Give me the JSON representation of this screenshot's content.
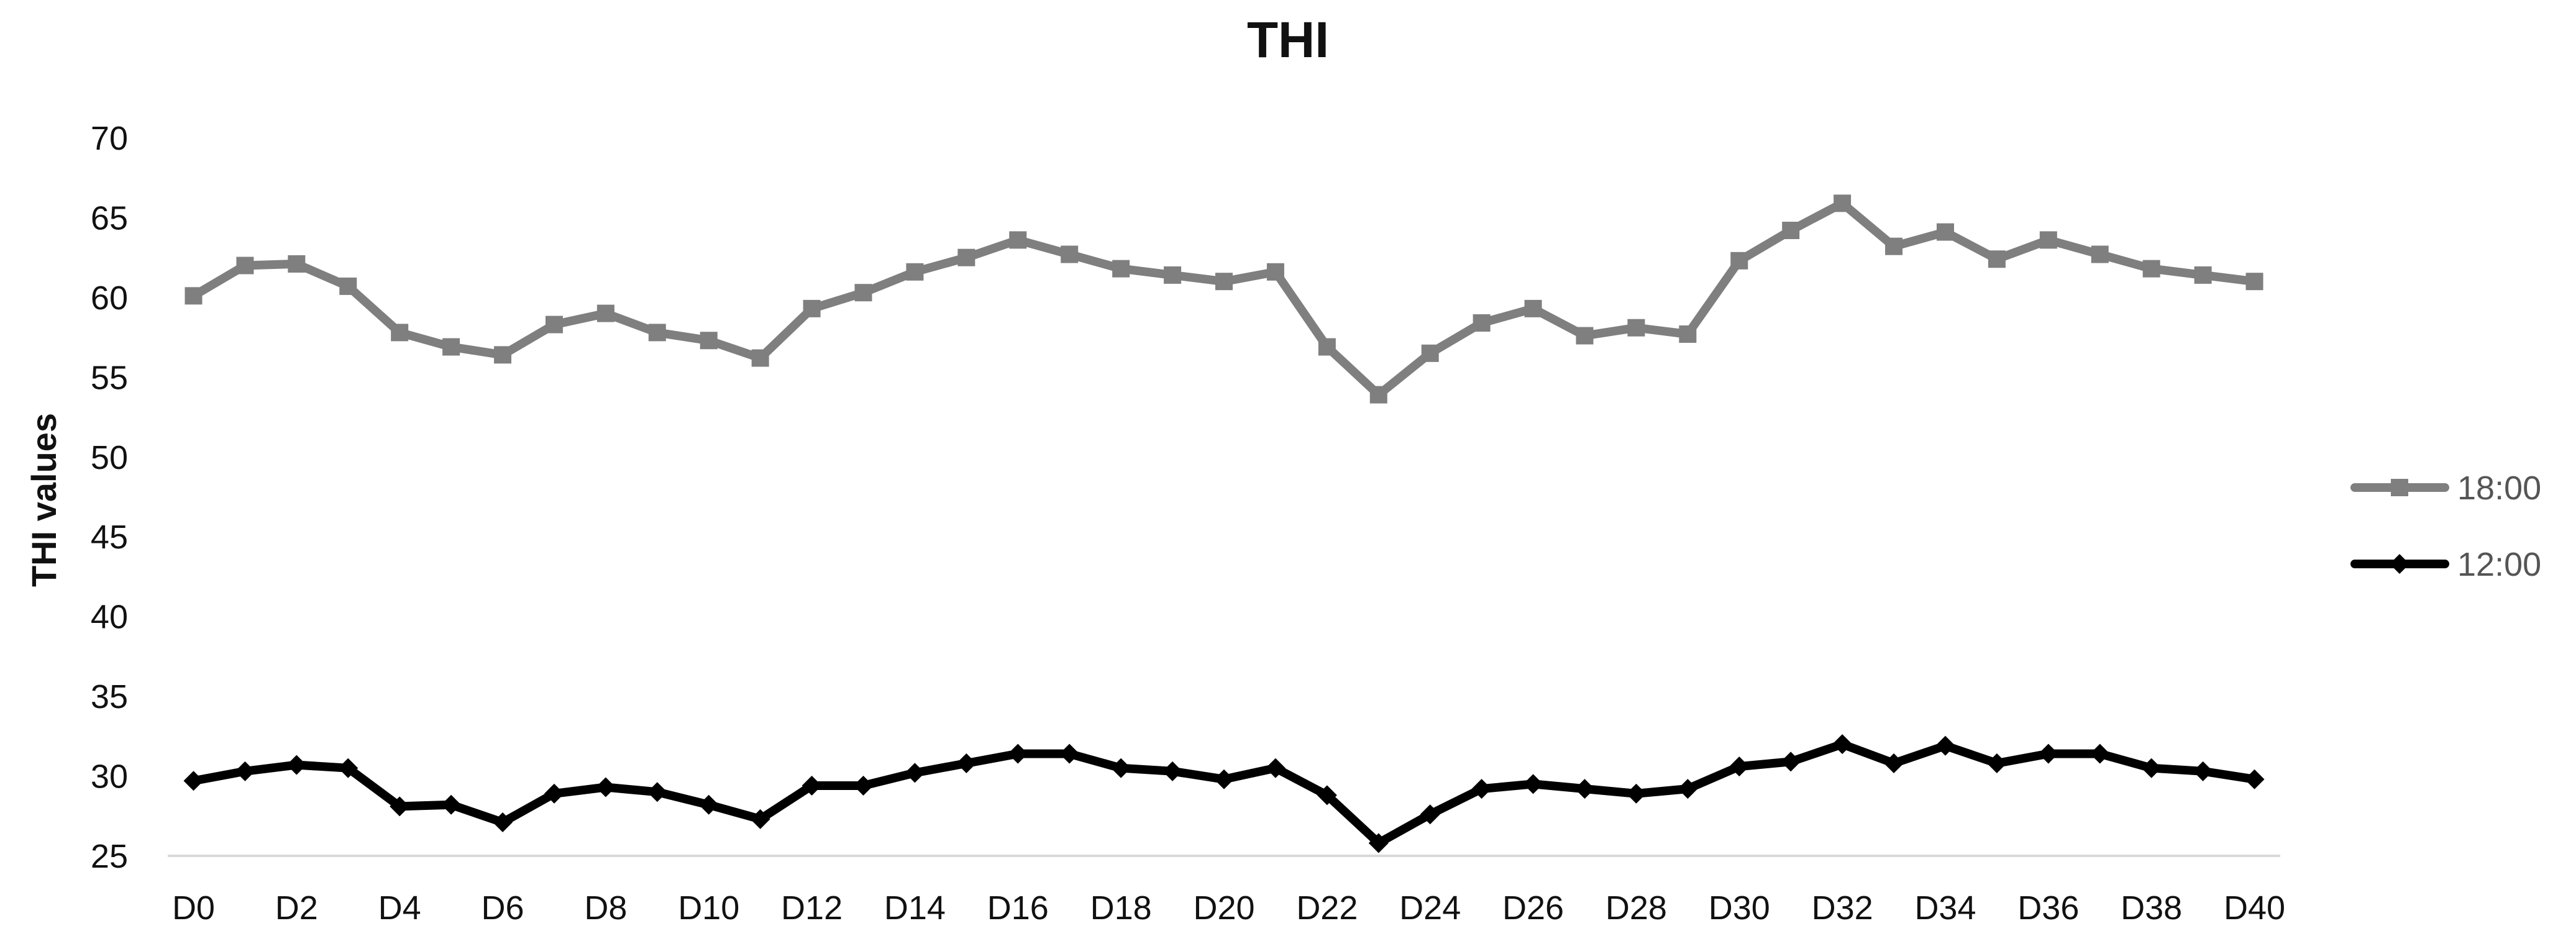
{
  "chart_data": {
    "type": "line",
    "title": "THI",
    "xlabel": "",
    "ylabel": "THI values",
    "ylim": [
      25,
      70
    ],
    "yticks": [
      25,
      30,
      35,
      40,
      45,
      50,
      55,
      60,
      65,
      70
    ],
    "grid": false,
    "legend_position": "right",
    "categories": [
      "D0",
      "D1",
      "D2",
      "D3",
      "D4",
      "D5",
      "D6",
      "D7",
      "D8",
      "D9",
      "D10",
      "D11",
      "D12",
      "D13",
      "D14",
      "D15",
      "D16",
      "D17",
      "D18",
      "D19",
      "D20",
      "D21",
      "D22",
      "D23",
      "D24",
      "D25",
      "D26",
      "D27",
      "D28",
      "D29",
      "D30",
      "D31",
      "D32",
      "D33",
      "D34",
      "D35",
      "D36",
      "D37",
      "D38",
      "D39",
      "D40"
    ],
    "xtick_labels": [
      "D0",
      "D2",
      "D4",
      "D6",
      "D8",
      "D10",
      "D12",
      "D14",
      "D16",
      "D18",
      "D20",
      "D22",
      "D24",
      "D26",
      "D28",
      "D30",
      "D32",
      "D34",
      "D36",
      "D38",
      "D40"
    ],
    "series": [
      {
        "name": "18:00",
        "color": "#7f7f7f",
        "marker": "square",
        "values": [
          60.1,
          62.0,
          62.1,
          60.7,
          57.8,
          56.9,
          56.4,
          58.3,
          59.0,
          57.8,
          57.3,
          56.2,
          59.3,
          60.3,
          61.6,
          62.5,
          63.6,
          62.7,
          61.8,
          61.4,
          61.0,
          61.6,
          56.9,
          53.9,
          56.5,
          58.4,
          59.3,
          57.6,
          58.1,
          57.7,
          62.3,
          64.2,
          65.9,
          63.2,
          64.1,
          62.4,
          63.6,
          62.7,
          61.8,
          61.4,
          61.0
        ]
      },
      {
        "name": "12:00",
        "color": "#000000",
        "marker": "diamond",
        "values": [
          29.7,
          30.3,
          30.7,
          30.5,
          28.1,
          28.2,
          27.1,
          28.9,
          29.3,
          29.0,
          28.2,
          27.3,
          29.4,
          29.4,
          30.2,
          30.8,
          31.4,
          31.4,
          30.5,
          30.3,
          29.8,
          30.5,
          28.8,
          25.8,
          27.6,
          29.2,
          29.5,
          29.2,
          28.9,
          29.2,
          30.6,
          30.9,
          32.0,
          30.8,
          31.9,
          30.8,
          31.4,
          31.4,
          30.5,
          30.3,
          29.8
        ]
      }
    ]
  }
}
